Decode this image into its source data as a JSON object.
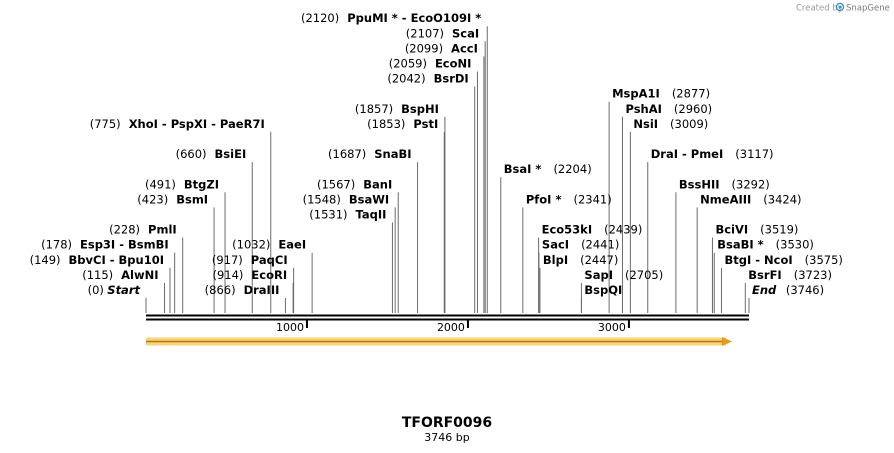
{
  "branding": {
    "prefix": "Created by",
    "product": "SnapGene"
  },
  "map": {
    "name": "TFORF0096",
    "length_label": "3746 bp",
    "length_bp": 3746,
    "ticks": [
      {
        "bp": 1000,
        "label": "1000"
      },
      {
        "bp": 2000,
        "label": "2000"
      },
      {
        "bp": 3000,
        "label": "3000"
      }
    ],
    "sites": [
      {
        "name": "Start",
        "pos_text": "(0)",
        "bp": 0,
        "side": "left",
        "row": 0,
        "italic": true
      },
      {
        "name": "AlwNI",
        "pos_text": "(115)",
        "bp": 115,
        "side": "left",
        "row": 1
      },
      {
        "name": "BbvCI - Bpu10I",
        "pos_text": "(149)",
        "bp": 149,
        "side": "left",
        "row": 2
      },
      {
        "name": "Esp3I - BsmBI",
        "pos_text": "(178)",
        "bp": 178,
        "side": "left",
        "row": 3
      },
      {
        "name": "PmlI",
        "pos_text": "(228)",
        "bp": 228,
        "side": "left",
        "row": 4
      },
      {
        "name": "BsmI",
        "pos_text": "(423)",
        "bp": 423,
        "side": "left",
        "row": 6
      },
      {
        "name": "BtgZI",
        "pos_text": "(491)",
        "bp": 491,
        "side": "left",
        "row": 7
      },
      {
        "name": "BsiEI",
        "pos_text": "(660)",
        "bp": 660,
        "side": "left",
        "row": 9
      },
      {
        "name": "XhoI - PspXI - PaeR7I",
        "pos_text": "(775)",
        "bp": 775,
        "side": "left",
        "row": 11
      },
      {
        "name": "DraIII",
        "pos_text": "(866)",
        "bp": 866,
        "side": "left",
        "row": 0
      },
      {
        "name": "EcoRI",
        "pos_text": "(914)",
        "bp": 914,
        "side": "left",
        "row": 1
      },
      {
        "name": "PaqCI",
        "pos_text": "(917)",
        "bp": 917,
        "side": "left",
        "row": 2
      },
      {
        "name": "EaeI",
        "pos_text": "(1032)",
        "bp": 1032,
        "side": "left",
        "row": 3
      },
      {
        "name": "TaqII",
        "pos_text": "(1531)",
        "bp": 1531,
        "side": "left",
        "row": 5
      },
      {
        "name": "BsaWI",
        "pos_text": "(1548)",
        "bp": 1548,
        "side": "left",
        "row": 6
      },
      {
        "name": "BanI",
        "pos_text": "(1567)",
        "bp": 1567,
        "side": "left",
        "row": 7
      },
      {
        "name": "SnaBI",
        "pos_text": "(1687)",
        "bp": 1687,
        "side": "left",
        "row": 9
      },
      {
        "name": "PstI",
        "pos_text": "(1853)",
        "bp": 1853,
        "side": "left",
        "row": 11
      },
      {
        "name": "BspHI",
        "pos_text": "(1857)",
        "bp": 1857,
        "side": "left",
        "row": 12
      },
      {
        "name": "BsrDI",
        "pos_text": "(2042)",
        "bp": 2042,
        "side": "left",
        "row": 14
      },
      {
        "name": "EcoNI",
        "pos_text": "(2059)",
        "bp": 2059,
        "side": "left",
        "row": 15
      },
      {
        "name": "AccI",
        "pos_text": "(2099)",
        "bp": 2099,
        "side": "left",
        "row": 16
      },
      {
        "name": "ScaI",
        "pos_text": "(2107)",
        "bp": 2107,
        "side": "left",
        "row": 17
      },
      {
        "name": "PpuMI * - EcoO109I *",
        "pos_text": "(2120)",
        "bp": 2120,
        "side": "left",
        "row": 18
      },
      {
        "name": "BsaI *",
        "pos_text": "(2204)",
        "bp": 2204,
        "side": "right",
        "row": 8
      },
      {
        "name": "PfoI *",
        "pos_text": "(2341)",
        "bp": 2341,
        "side": "right",
        "row": 6
      },
      {
        "name": "Eco53kI",
        "pos_text": "(2439)",
        "bp": 2439,
        "side": "right",
        "row": 4
      },
      {
        "name": "SacI",
        "pos_text": "(2441)",
        "bp": 2441,
        "side": "right",
        "row": 3
      },
      {
        "name": "BlpI",
        "pos_text": "(2447)",
        "bp": 2447,
        "side": "right",
        "row": 2
      },
      {
        "name": "BspQI",
        "pos_text": "",
        "bp": 2705,
        "side": "right",
        "row": 0
      },
      {
        "name": "SapI",
        "pos_text": "(2705)",
        "bp": 2705,
        "side": "right",
        "row": 1
      },
      {
        "name": "MspA1I",
        "pos_text": "(2877)",
        "bp": 2877,
        "side": "right",
        "row": 13
      },
      {
        "name": "PshAI",
        "pos_text": "(2960)",
        "bp": 2960,
        "side": "right",
        "row": 12
      },
      {
        "name": "NsiI",
        "pos_text": "(3009)",
        "bp": 3009,
        "side": "right",
        "row": 11
      },
      {
        "name": "DraI - PmeI",
        "pos_text": "(3117)",
        "bp": 3117,
        "side": "right",
        "row": 9
      },
      {
        "name": "BssHII",
        "pos_text": "(3292)",
        "bp": 3292,
        "side": "right",
        "row": 7
      },
      {
        "name": "NmeAIII",
        "pos_text": "(3424)",
        "bp": 3424,
        "side": "right",
        "row": 6
      },
      {
        "name": "BciVI",
        "pos_text": "(3519)",
        "bp": 3519,
        "side": "right",
        "row": 4
      },
      {
        "name": "BsaBI *",
        "pos_text": "(3530)",
        "bp": 3530,
        "side": "right",
        "row": 3
      },
      {
        "name": "BtgI - NcoI",
        "pos_text": "(3575)",
        "bp": 3575,
        "side": "right",
        "row": 2
      },
      {
        "name": "BsrFI",
        "pos_text": "(3723)",
        "bp": 3723,
        "side": "right",
        "row": 1
      },
      {
        "name": "End",
        "pos_text": "(3746)",
        "bp": 3746,
        "side": "right",
        "row": 0,
        "italic": true
      }
    ]
  },
  "colors": {
    "backbone": "#000000",
    "feature_fill": "#fdd27a",
    "feature_edge": "#e89a1b",
    "feature_line": "#b07a12",
    "leader": "#6b6b6b",
    "brand_text": "#9a9a9a",
    "brand_logo": "#3c8fd1"
  }
}
